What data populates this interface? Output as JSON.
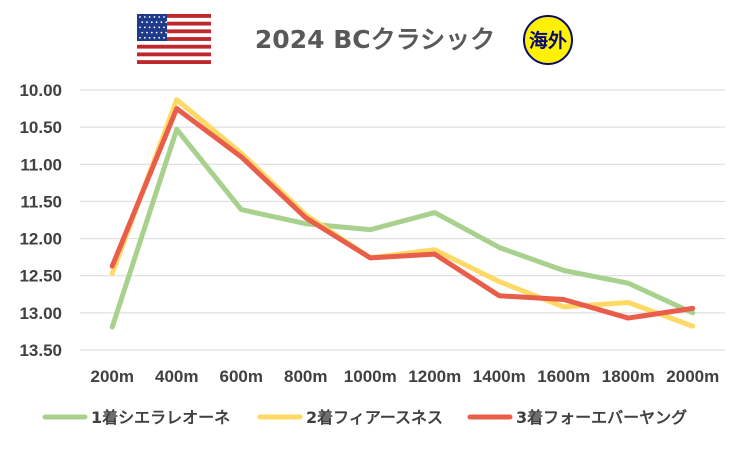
{
  "chart_data": {
    "type": "line",
    "title": "2024 BCクラシック",
    "badge": "海外",
    "categories": [
      "200m",
      "400m",
      "600m",
      "800m",
      "1000m",
      "1200m",
      "1400m",
      "1600m",
      "1800m",
      "2000m"
    ],
    "y_ticks": [
      "10.00",
      "10.50",
      "11.00",
      "11.50",
      "12.00",
      "12.50",
      "13.00",
      "13.50"
    ],
    "ylim": [
      10.0,
      13.5
    ],
    "y_inverted": true,
    "grid": true,
    "legend_position": "bottom",
    "series": [
      {
        "name": "1着シエラレオーネ",
        "color": "#a9d18e",
        "values": [
          13.19,
          10.53,
          11.61,
          11.8,
          11.88,
          11.65,
          12.12,
          12.43,
          12.6,
          13.0
        ]
      },
      {
        "name": "2着フィアースネス",
        "color": "#ffd966",
        "values": [
          12.47,
          10.13,
          10.85,
          11.68,
          12.26,
          12.15,
          12.58,
          12.92,
          12.86,
          13.18
        ]
      },
      {
        "name": "3着フォーエバーヤング",
        "color": "#e95e4a",
        "values": [
          12.37,
          10.25,
          10.9,
          11.72,
          12.26,
          12.21,
          12.77,
          12.82,
          13.07,
          12.94
        ]
      }
    ]
  }
}
